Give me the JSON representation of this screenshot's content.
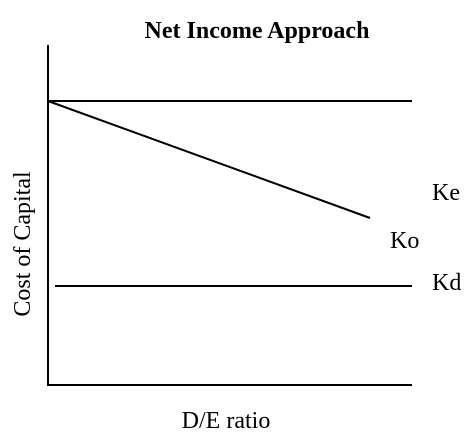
{
  "title": "Net Income Approach",
  "axes": {
    "x_label": "D/E ratio",
    "y_label": "Cost of Capital"
  },
  "lines": [
    {
      "label": "Ke"
    },
    {
      "label": "Ko"
    },
    {
      "label": "Kd"
    }
  ]
}
